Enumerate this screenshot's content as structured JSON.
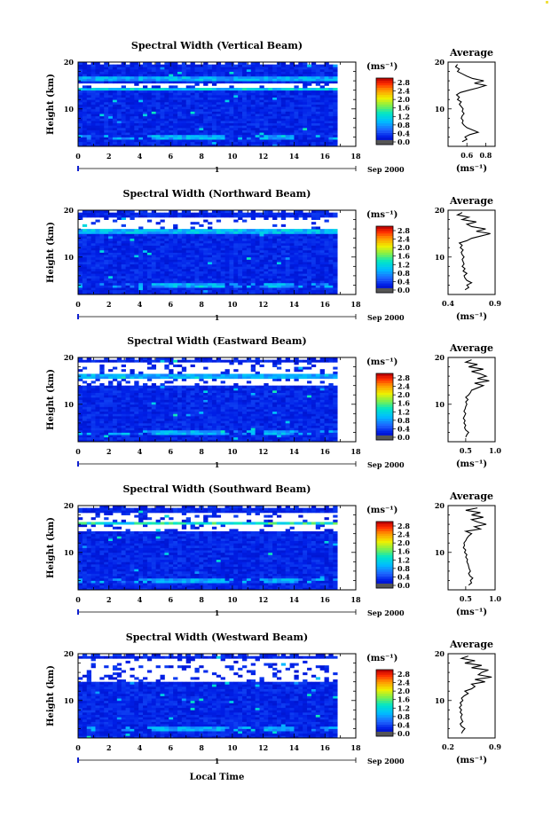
{
  "chart_data": [
    {
      "type": "heatmap",
      "title": "Spectral Width (Vertical Beam)",
      "ylabel": "Height (km)",
      "xlim": [
        0,
        18
      ],
      "ylim": [
        2,
        20
      ],
      "x_ticks": [
        "0",
        "2",
        "4",
        "6",
        "8",
        "10",
        "12",
        "14",
        "16",
        "18"
      ],
      "y_ticks": [
        "20",
        "10"
      ],
      "date_label": "Sep 2000",
      "day_label": "1",
      "colorbar": {
        "unit": "(ms⁻¹)",
        "ticks": [
          "2.8",
          "2.4",
          "2.0",
          "1.6",
          "1.2",
          "0.8",
          "0.4",
          "0.0"
        ],
        "range": [
          0.0,
          2.8
        ]
      },
      "bands": [
        {
          "height_km": 15.0,
          "thickness_km": 1.5,
          "width_ms": 0.0,
          "note": "gap"
        },
        {
          "height_km": 16.5,
          "thickness_km": 0.8,
          "width_ms": 0.9
        },
        {
          "height_km": 14.3,
          "thickness_km": 0.6,
          "width_ms": 1.1
        },
        {
          "height_km": 4.0,
          "thickness_km": 0.8,
          "width_ms": 0.9
        }
      ],
      "profile": {
        "title": "Average",
        "xlabel": "(ms⁻¹)",
        "xlim": [
          0.4,
          0.9
        ],
        "x_ticks": [
          "0.6",
          "0.8"
        ],
        "y_ticks": [
          "20",
          "10"
        ],
        "height_km": [
          3,
          3.5,
          4,
          4.5,
          5,
          5.5,
          6,
          6.5,
          7,
          7.5,
          8,
          8.5,
          9,
          9.5,
          10,
          10.5,
          11,
          11.5,
          12,
          12.5,
          13,
          13.5,
          14,
          14.5,
          15,
          15.5,
          16,
          16.5,
          17,
          17.5,
          18,
          18.5,
          19,
          19.5
        ],
        "width_ms": [
          0.55,
          0.6,
          0.58,
          0.63,
          0.72,
          0.66,
          0.6,
          0.57,
          0.55,
          0.56,
          0.54,
          0.55,
          0.57,
          0.55,
          0.56,
          0.54,
          0.52,
          0.54,
          0.5,
          0.52,
          0.49,
          0.53,
          0.62,
          0.72,
          0.8,
          0.68,
          0.78,
          0.66,
          0.6,
          0.55,
          0.5,
          0.52,
          0.48,
          0.5
        ]
      }
    },
    {
      "type": "heatmap",
      "title": "Spectral Width (Northward Beam)",
      "ylabel": "Height (km)",
      "xlim": [
        0,
        18
      ],
      "ylim": [
        2,
        20
      ],
      "x_ticks": [
        "0",
        "2",
        "4",
        "6",
        "8",
        "10",
        "12",
        "14",
        "16",
        "18"
      ],
      "y_ticks": [
        "20",
        "10"
      ],
      "date_label": "Sep 2000",
      "day_label": "1",
      "colorbar": {
        "unit": "(ms⁻¹)",
        "ticks": [
          "2.8",
          "2.4",
          "2.0",
          "1.6",
          "1.2",
          "0.8",
          "0.4",
          "0.0"
        ],
        "range": [
          0.0,
          2.8
        ]
      },
      "bands": [
        {
          "height_km": 17.0,
          "thickness_km": 3.5,
          "width_ms": 0.0,
          "note": "gap"
        },
        {
          "height_km": 15.5,
          "thickness_km": 0.6,
          "width_ms": 1.0
        },
        {
          "height_km": 4.0,
          "thickness_km": 0.8,
          "width_ms": 0.9
        }
      ],
      "profile": {
        "title": "Average",
        "xlabel": "(ms⁻¹)",
        "xlim": [
          0.4,
          0.9
        ],
        "x_ticks": [
          "0.4",
          "0.9"
        ],
        "y_ticks": [
          "20",
          "10"
        ],
        "height_km": [
          3,
          3.5,
          4,
          4.5,
          5,
          5.5,
          6,
          6.5,
          7,
          7.5,
          8,
          8.5,
          9,
          9.5,
          10,
          10.5,
          11,
          11.5,
          12,
          12.5,
          13,
          13.5,
          14,
          14.5,
          15,
          15.5,
          16,
          16.5,
          17,
          17.5,
          18,
          18.5,
          19,
          19.5
        ],
        "width_ms": [
          0.58,
          0.62,
          0.6,
          0.65,
          0.6,
          0.58,
          0.57,
          0.6,
          0.56,
          0.58,
          0.55,
          0.57,
          0.56,
          0.55,
          0.57,
          0.55,
          0.54,
          0.56,
          0.53,
          0.55,
          0.52,
          0.6,
          0.65,
          0.75,
          0.85,
          0.7,
          0.8,
          0.65,
          0.6,
          0.7,
          0.55,
          0.62,
          0.5,
          0.55
        ]
      }
    },
    {
      "type": "heatmap",
      "title": "Spectral Width (Eastward Beam)",
      "ylabel": "Height (km)",
      "xlim": [
        0,
        18
      ],
      "ylim": [
        2,
        20
      ],
      "x_ticks": [
        "0",
        "2",
        "4",
        "6",
        "8",
        "10",
        "12",
        "14",
        "16",
        "18"
      ],
      "y_ticks": [
        "20",
        "10"
      ],
      "date_label": "Sep 2000",
      "day_label": "1",
      "colorbar": {
        "unit": "(ms⁻¹)",
        "ticks": [
          "2.8",
          "2.4",
          "2.0",
          "1.6",
          "1.2",
          "0.8",
          "0.4",
          "0.0"
        ],
        "range": [
          0.0,
          2.8
        ]
      },
      "bands": [
        {
          "height_km": 16.5,
          "thickness_km": 5.0,
          "width_ms": 0.0,
          "note": "gap"
        },
        {
          "height_km": 16.0,
          "thickness_km": 0.6,
          "width_ms": 0.9
        },
        {
          "height_km": 4.0,
          "thickness_km": 0.8,
          "width_ms": 0.9
        }
      ],
      "profile": {
        "title": "Average",
        "xlabel": "(ms⁻¹)",
        "xlim": [
          0.2,
          1.0
        ],
        "x_ticks": [
          "0.5",
          "1.0"
        ],
        "y_ticks": [
          "20",
          "10"
        ],
        "height_km": [
          3,
          3.5,
          4,
          4.5,
          5,
          5.5,
          6,
          6.5,
          7,
          7.5,
          8,
          8.5,
          9,
          9.5,
          10,
          10.5,
          11,
          11.5,
          12,
          12.5,
          13,
          13.5,
          14,
          14.5,
          15,
          15.5,
          16,
          16.5,
          17,
          17.5,
          18,
          18.5,
          19,
          19.5
        ],
        "width_ms": [
          0.5,
          0.52,
          0.55,
          0.5,
          0.48,
          0.5,
          0.47,
          0.49,
          0.46,
          0.48,
          0.5,
          0.47,
          0.49,
          0.5,
          0.52,
          0.5,
          0.54,
          0.5,
          0.55,
          0.58,
          0.6,
          0.7,
          0.8,
          0.65,
          0.9,
          0.7,
          0.85,
          0.75,
          0.6,
          0.8,
          0.55,
          0.7,
          0.5,
          0.6
        ]
      }
    },
    {
      "type": "heatmap",
      "title": "Spectral Width (Southward Beam)",
      "ylabel": "Height (km)",
      "xlim": [
        0,
        18
      ],
      "ylim": [
        2,
        20
      ],
      "x_ticks": [
        "0",
        "2",
        "4",
        "6",
        "8",
        "10",
        "12",
        "14",
        "16",
        "18"
      ],
      "y_ticks": [
        "20",
        "10"
      ],
      "date_label": "Sep 2000",
      "day_label": "1",
      "colorbar": {
        "unit": "(ms⁻¹)",
        "ticks": [
          "2.8",
          "2.4",
          "2.0",
          "1.6",
          "1.2",
          "0.8",
          "0.4",
          "0.0"
        ],
        "range": [
          0.0,
          2.8
        ]
      },
      "bands": [
        {
          "height_km": 16.5,
          "thickness_km": 4.0,
          "width_ms": 0.0,
          "note": "gap"
        },
        {
          "height_km": 16.3,
          "thickness_km": 0.6,
          "width_ms": 1.3
        },
        {
          "height_km": 4.0,
          "thickness_km": 0.8,
          "width_ms": 0.9
        }
      ],
      "profile": {
        "title": "Average",
        "xlabel": "(ms⁻¹)",
        "xlim": [
          0.2,
          1.0
        ],
        "x_ticks": [
          "0.5",
          "1.0"
        ],
        "y_ticks": [
          "20",
          "10"
        ],
        "height_km": [
          3,
          3.5,
          4,
          4.5,
          5,
          5.5,
          6,
          6.5,
          7,
          7.5,
          8,
          8.5,
          9,
          9.5,
          10,
          10.5,
          11,
          11.5,
          12,
          12.5,
          13,
          13.5,
          14,
          14.5,
          15,
          15.5,
          16,
          16.5,
          17,
          17.5,
          18,
          18.5,
          19,
          19.5
        ],
        "width_ms": [
          0.55,
          0.6,
          0.58,
          0.62,
          0.57,
          0.55,
          0.58,
          0.56,
          0.55,
          0.54,
          0.52,
          0.53,
          0.5,
          0.52,
          0.48,
          0.5,
          0.46,
          0.48,
          0.47,
          0.5,
          0.52,
          0.55,
          0.6,
          0.5,
          0.75,
          0.65,
          0.85,
          0.7,
          0.6,
          0.8,
          0.6,
          0.75,
          0.5,
          0.7
        ]
      }
    },
    {
      "type": "heatmap",
      "title": "Spectral Width (Westward Beam)",
      "xlabel": "Local Time",
      "ylabel": "Height (km)",
      "xlim": [
        0,
        18
      ],
      "ylim": [
        2,
        20
      ],
      "x_ticks": [
        "0",
        "2",
        "4",
        "6",
        "8",
        "10",
        "12",
        "14",
        "16",
        "18"
      ],
      "y_ticks": [
        "20",
        "10"
      ],
      "date_label": "Sep 2000",
      "day_label": "1",
      "colorbar": {
        "unit": "(ms⁻¹)",
        "ticks": [
          "2.8",
          "2.4",
          "2.0",
          "1.6",
          "1.2",
          "0.8",
          "0.4",
          "0.0"
        ],
        "range": [
          0.0,
          2.8
        ]
      },
      "bands": [
        {
          "height_km": 16.5,
          "thickness_km": 5.5,
          "width_ms": 0.0,
          "note": "gap"
        },
        {
          "height_km": 16.0,
          "thickness_km": 0.5,
          "width_ms": 0.9
        },
        {
          "height_km": 4.0,
          "thickness_km": 0.8,
          "width_ms": 0.9
        }
      ],
      "profile": {
        "title": "Average",
        "xlabel": "(ms⁻¹)",
        "xlim": [
          0.2,
          0.9
        ],
        "x_ticks": [
          "0.2",
          "0.9"
        ],
        "y_ticks": [
          "20",
          "10"
        ],
        "height_km": [
          3,
          3.5,
          4,
          4.5,
          5,
          5.5,
          6,
          6.5,
          7,
          7.5,
          8,
          8.5,
          9,
          9.5,
          10,
          10.5,
          11,
          11.5,
          12,
          12.5,
          13,
          13.5,
          14,
          14.5,
          15,
          15.5,
          16,
          16.5,
          17,
          17.5,
          18,
          18.5,
          19,
          19.5
        ],
        "width_ms": [
          0.4,
          0.42,
          0.45,
          0.4,
          0.38,
          0.42,
          0.4,
          0.39,
          0.41,
          0.38,
          0.4,
          0.37,
          0.4,
          0.38,
          0.42,
          0.4,
          0.44,
          0.5,
          0.45,
          0.55,
          0.6,
          0.55,
          0.75,
          0.6,
          0.85,
          0.65,
          0.7,
          0.8,
          0.55,
          0.7,
          0.45,
          0.6,
          0.4,
          0.5
        ]
      }
    }
  ]
}
